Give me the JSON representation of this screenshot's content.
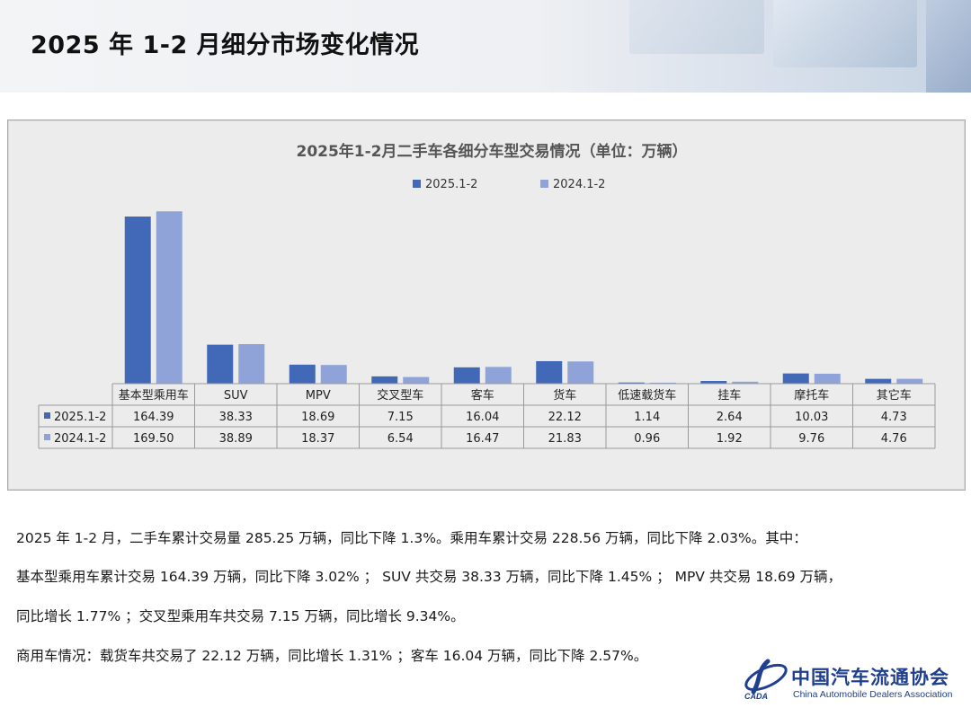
{
  "header": {
    "title": "2025 年 1-2 月细分市场变化情况"
  },
  "chart_data": {
    "type": "bar",
    "title": "2025年1-2月二手车各细分车型交易情况（单位：万辆）",
    "categories": [
      "基本型乘用车",
      "SUV",
      "MPV",
      "交叉型车",
      "客车",
      "货车",
      "低速载货车",
      "挂车",
      "摩托车",
      "其它车"
    ],
    "series": [
      {
        "name": "2025.1-2",
        "color": "#4169b8",
        "values": [
          164.39,
          38.33,
          18.69,
          7.15,
          16.04,
          22.12,
          1.14,
          2.64,
          10.03,
          4.73
        ],
        "labels": [
          "164.39",
          "38.33",
          "18.69",
          "7.15",
          "16.04",
          "22.12",
          "1.14",
          "2.64",
          "10.03",
          "4.73"
        ]
      },
      {
        "name": "2024.1-2",
        "color": "#8fa3d9",
        "values": [
          169.5,
          38.89,
          18.37,
          6.54,
          16.47,
          21.83,
          0.96,
          1.92,
          9.76,
          4.76
        ],
        "labels": [
          "169.50",
          "38.89",
          "18.37",
          "6.54",
          "16.47",
          "21.83",
          "0.96",
          "1.92",
          "9.76",
          "4.76"
        ]
      }
    ],
    "legend": "top",
    "data_table": true,
    "grid": false
  },
  "summary": {
    "line1": "2025 年 1-2 月，二手车累计交易量 285.25 万辆，同比下降 1.3%。乘用车累计交易 228.56 万辆，同比下降 2.03%。其中：",
    "line2": "基本型乘用车累计交易 164.39 万辆，同比下降 3.02% ； SUV 共交易 38.33 万辆，同比下降 1.45% ； MPV 共交易 18.69 万辆，",
    "line3": "同比增长 1.77% ；交叉型乘用车共交易 7.15 万辆，同比增长 9.34%。",
    "line4": "商用车情况：载货车共交易了 22.12 万辆，同比增长 1.31% ；客车 16.04 万辆，同比下降 2.57%。"
  },
  "logo": {
    "name_cn": "中国汽车流通协会",
    "name_en": "China Automobile Dealers Association",
    "abbr": "CADA"
  }
}
